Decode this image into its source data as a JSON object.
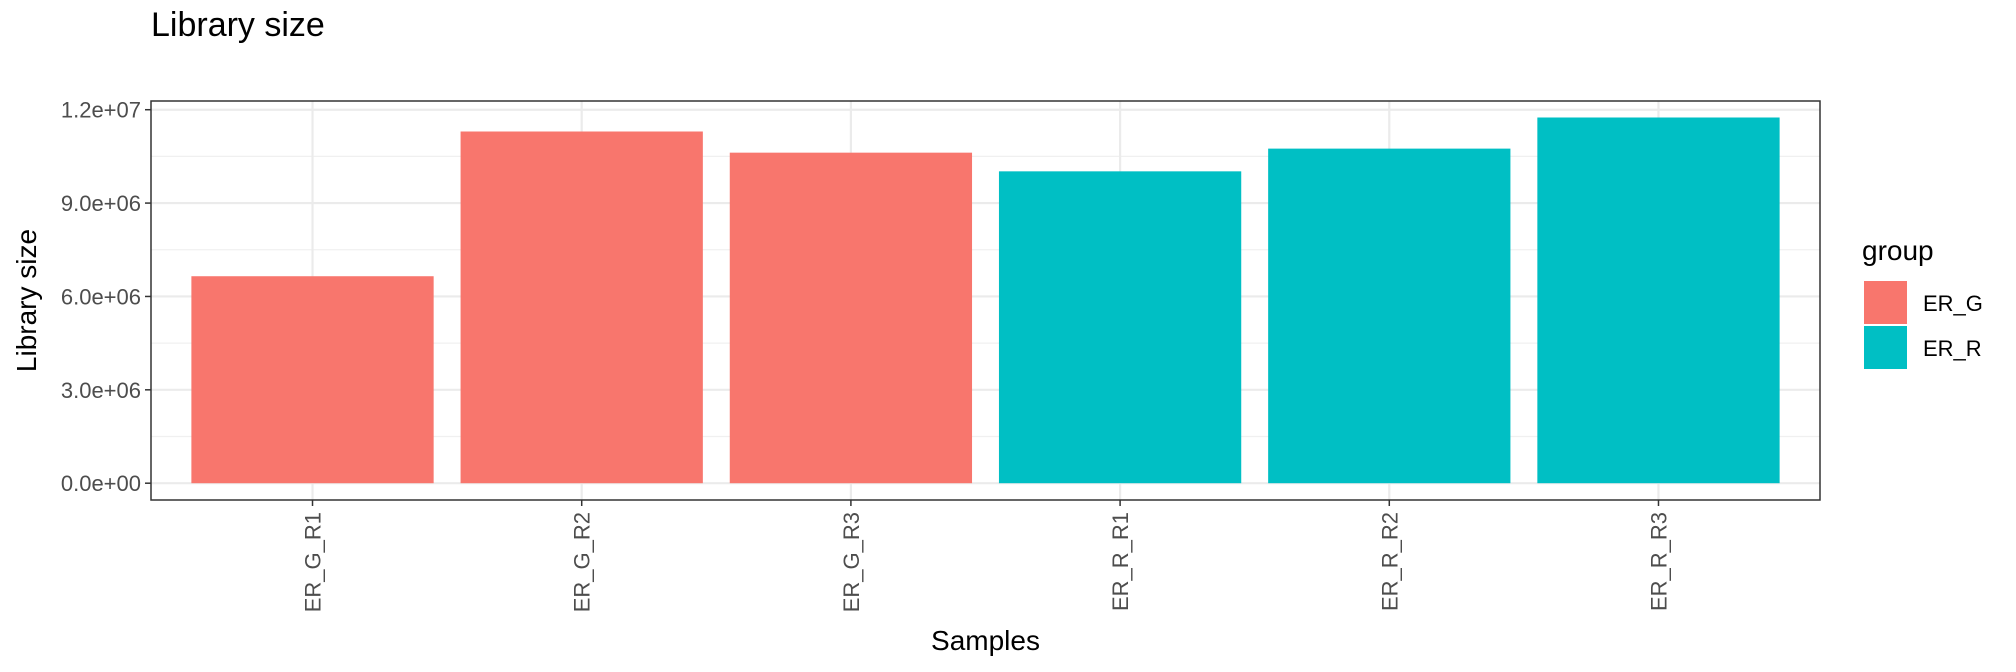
{
  "chart_data": {
    "type": "bar",
    "title": "Library size",
    "xlabel": "Samples",
    "ylabel": "Library size",
    "categories": [
      "ER_G_R1",
      "ER_G_R2",
      "ER_G_R3",
      "ER_R_R1",
      "ER_R_R2",
      "ER_R_R3"
    ],
    "values": [
      6650000,
      11300000,
      10620000,
      10020000,
      10750000,
      11750000
    ],
    "groups": [
      "ER_G",
      "ER_G",
      "ER_G",
      "ER_R",
      "ER_R",
      "ER_R"
    ],
    "ylim": [
      -540000,
      12280000
    ],
    "yticks": [
      0,
      3000000,
      6000000,
      9000000,
      12000000
    ],
    "ytick_labels": [
      "0.0e+00",
      "3.0e+06",
      "6.0e+06",
      "9.0e+06",
      "1.2e+07"
    ],
    "grid": true,
    "legend": {
      "title": "group",
      "placement": "right",
      "entries": [
        {
          "label": "ER_G",
          "color": "#F8766D"
        },
        {
          "label": "ER_R",
          "color": "#00BFC4"
        }
      ]
    }
  }
}
